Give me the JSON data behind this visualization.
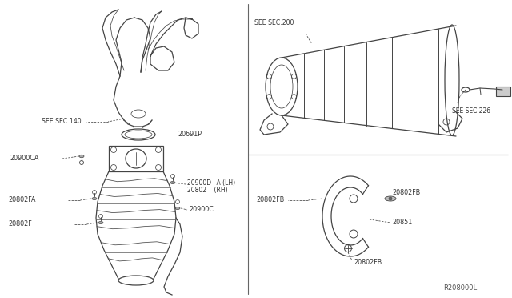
{
  "bg_color": "#ffffff",
  "line_color": "#444444",
  "text_color": "#333333",
  "ref_code": "R208000L",
  "labels": {
    "see_sec_140": "SEE SEC.140",
    "see_sec_200": "SEE SEC.200",
    "see_sec_226": "SEE SEC.226",
    "part_20691p": "20691P",
    "part_20900ca": "20900CA",
    "part_20900d_a": "20900D+A (LH)",
    "part_20802": "20802    (RH)",
    "part_20900c": "20900C",
    "part_20802fa": "20802FA",
    "part_20802f": "20802F",
    "part_20802fb_tl": "20802FB",
    "part_20802fb_tr": "20802FB",
    "part_20802fb_b": "20802FB",
    "part_20851": "20851"
  },
  "fs": 5.8,
  "fs_ref": 6.0
}
